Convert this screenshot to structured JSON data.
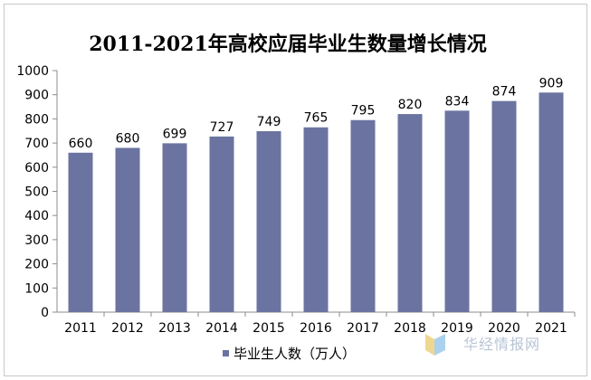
{
  "chart_data": {
    "type": "bar",
    "title": "2011-2021年高校应届毕业生数量增长情况",
    "categories": [
      "2011",
      "2012",
      "2013",
      "2014",
      "2015",
      "2016",
      "2017",
      "2018",
      "2019",
      "2020",
      "2021"
    ],
    "series": [
      {
        "name": "毕业生人数（万人）",
        "values": [
          660,
          680,
          699,
          727,
          749,
          765,
          795,
          820,
          834,
          874,
          909
        ]
      }
    ],
    "ylim": [
      0,
      1000
    ],
    "yticks": [
      0,
      100,
      200,
      300,
      400,
      500,
      600,
      700,
      800,
      900,
      1000
    ],
    "grid": false,
    "legend_position": "bottom",
    "bar_color": "#6b74a0"
  },
  "watermark": {
    "text": "华经情报网"
  }
}
